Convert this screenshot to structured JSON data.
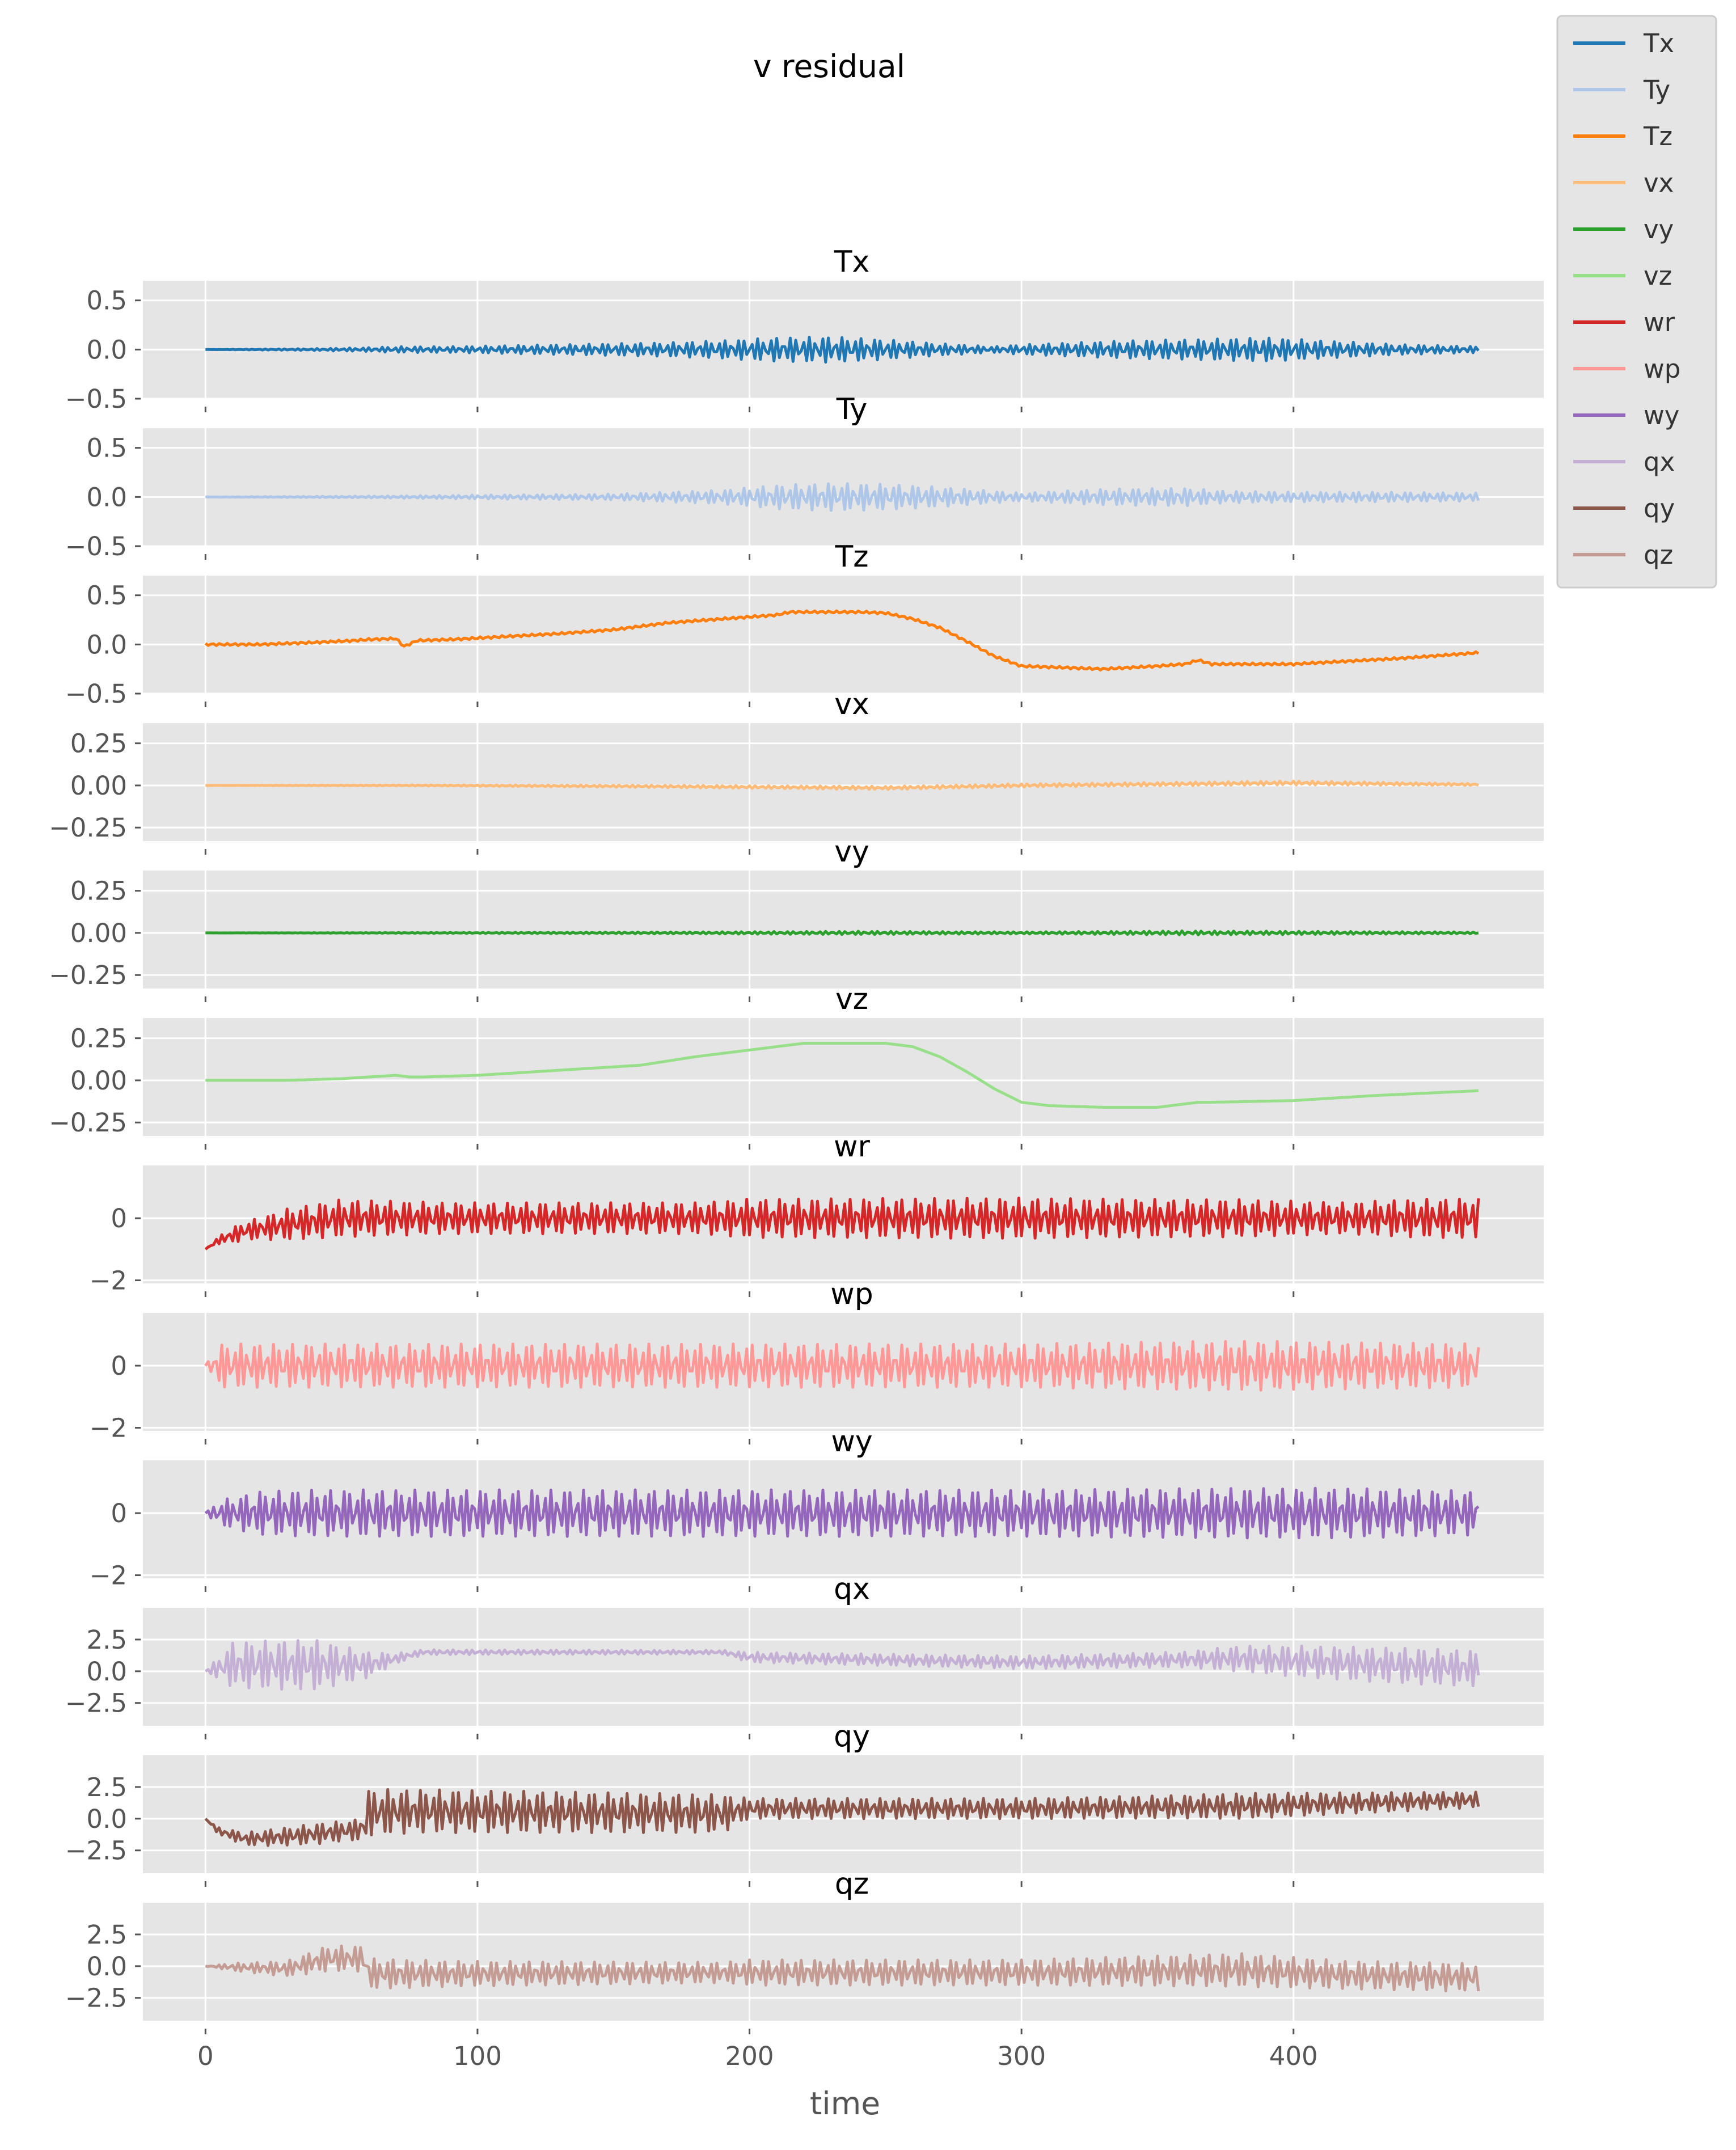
{
  "chart_data": {
    "type": "line",
    "title": "v residual",
    "xlabel": "time",
    "xlim": [
      -23,
      492
    ],
    "xticks": [
      0,
      100,
      200,
      300,
      400
    ],
    "xtick_labels": [
      "0",
      "100",
      "200",
      "300",
      "400"
    ],
    "grid": true,
    "legend_placement": "top-right (outside)",
    "legend": [
      "Tx",
      "Ty",
      "Tz",
      "vx",
      "vy",
      "vz",
      "wr",
      "wp",
      "wy",
      "qx",
      "qy",
      "qz"
    ],
    "colors": {
      "Tx": "#1f77b4",
      "Ty": "#aec7e8",
      "Tz": "#ff7f0e",
      "vx": "#ffbb78",
      "vy": "#2ca02c",
      "vz": "#98df8a",
      "wr": "#d62728",
      "wp": "#ff9896",
      "wy": "#9467bd",
      "qx": "#c5b0d5",
      "qy": "#8c564b",
      "qz": "#c49c94"
    },
    "panels": [
      {
        "title": "Tx",
        "ylim": [
          -0.5,
          0.7
        ],
        "yticks": [
          0.5,
          0.0,
          -0.5
        ],
        "ytick_labels": [
          "0.5",
          "0.0",
          "−0.5"
        ],
        "series": {
          "name": "Tx",
          "envelope_x": [
            0,
            40,
            60,
            70,
            90,
            130,
            170,
            190,
            210,
            230,
            250,
            270,
            290,
            300,
            320,
            340,
            360,
            375,
            390,
            410,
            440,
            470
          ],
          "envelope_amp": [
            0.0,
            0.01,
            0.02,
            0.03,
            0.03,
            0.05,
            0.07,
            0.09,
            0.12,
            0.13,
            0.1,
            0.06,
            0.03,
            0.05,
            0.07,
            0.09,
            0.1,
            0.11,
            0.12,
            0.09,
            0.05,
            0.03
          ],
          "trend_x": [
            0,
            470
          ],
          "trend_y": [
            0.0,
            0.0
          ],
          "freq": 0.42
        }
      },
      {
        "title": "Ty",
        "ylim": [
          -0.5,
          0.7
        ],
        "yticks": [
          0.5,
          0.0,
          -0.5
        ],
        "ytick_labels": [
          "0.5",
          "0.0",
          "−0.5"
        ],
        "series": {
          "name": "Ty",
          "envelope_x": [
            0,
            60,
            100,
            150,
            190,
            210,
            230,
            250,
            270,
            290,
            300,
            330,
            360,
            375,
            400,
            430,
            470
          ],
          "envelope_amp": [
            0.0,
            0.01,
            0.02,
            0.03,
            0.07,
            0.12,
            0.14,
            0.13,
            0.1,
            0.06,
            0.04,
            0.08,
            0.09,
            0.06,
            0.05,
            0.05,
            0.04
          ],
          "trend_x": [
            0,
            470
          ],
          "trend_y": [
            0.0,
            0.0
          ],
          "freq": 0.42
        }
      },
      {
        "title": "Tz",
        "ylim": [
          -0.5,
          0.7
        ],
        "yticks": [
          0.5,
          0.0,
          -0.5
        ],
        "ytick_labels": [
          "0.5",
          "0.0",
          "−0.5"
        ],
        "series": {
          "name": "Tz",
          "x": [
            0,
            20,
            40,
            55,
            60,
            70,
            73,
            78,
            90,
            110,
            130,
            150,
            170,
            190,
            200,
            210,
            215,
            220,
            230,
            240,
            250,
            260,
            270,
            280,
            290,
            300,
            310,
            330,
            350,
            360,
            365,
            370,
            380,
            400,
            420,
            440,
            470
          ],
          "y": [
            0.0,
            0.0,
            0.02,
            0.04,
            0.05,
            0.06,
            -0.02,
            0.04,
            0.05,
            0.08,
            0.11,
            0.15,
            0.22,
            0.26,
            0.28,
            0.3,
            0.33,
            0.33,
            0.33,
            0.33,
            0.32,
            0.26,
            0.17,
            0.03,
            -0.12,
            -0.22,
            -0.23,
            -0.25,
            -0.22,
            -0.2,
            -0.16,
            -0.2,
            -0.2,
            -0.2,
            -0.17,
            -0.14,
            -0.08
          ],
          "noise": 0.012
        }
      },
      {
        "title": "vx",
        "ylim": [
          -0.33,
          0.37
        ],
        "yticks": [
          0.25,
          0.0,
          -0.25
        ],
        "ytick_labels": [
          "0.25",
          "0.00",
          "−0.25"
        ],
        "series": {
          "name": "vx",
          "envelope_x": [
            0,
            100,
            180,
            230,
            300,
            400,
            470
          ],
          "envelope_amp": [
            0.0,
            0.004,
            0.008,
            0.01,
            0.01,
            0.012,
            0.006
          ],
          "trend_x": [
            0,
            80,
            160,
            250,
            300,
            400,
            470
          ],
          "trend_y": [
            0.0,
            0.0,
            -0.005,
            -0.015,
            0.0,
            0.015,
            0.005
          ],
          "freq": 0.42
        }
      },
      {
        "title": "vy",
        "ylim": [
          -0.33,
          0.37
        ],
        "yticks": [
          0.25,
          0.0,
          -0.25
        ],
        "ytick_labels": [
          "0.25",
          "0.00",
          "−0.25"
        ],
        "series": {
          "name": "vy",
          "envelope_x": [
            0,
            100,
            180,
            240,
            300,
            360,
            400,
            470
          ],
          "envelope_amp": [
            0.0,
            0.003,
            0.006,
            0.01,
            0.006,
            0.012,
            0.01,
            0.005
          ],
          "trend_x": [
            0,
            470
          ],
          "trend_y": [
            0.0,
            0.0
          ],
          "freq": 0.42
        }
      },
      {
        "title": "vz",
        "ylim": [
          -0.33,
          0.37
        ],
        "yticks": [
          0.25,
          0.0,
          -0.25
        ],
        "ytick_labels": [
          "0.25",
          "0.00",
          "−0.25"
        ],
        "series": {
          "name": "vz",
          "x": [
            0,
            30,
            50,
            60,
            70,
            75,
            80,
            100,
            120,
            140,
            160,
            180,
            200,
            210,
            220,
            230,
            240,
            250,
            260,
            270,
            280,
            290,
            300,
            310,
            330,
            340,
            350,
            360,
            365,
            370,
            400,
            430,
            470
          ],
          "y": [
            0.0,
            0.0,
            0.01,
            0.02,
            0.03,
            0.02,
            0.02,
            0.03,
            0.05,
            0.07,
            0.09,
            0.14,
            0.18,
            0.2,
            0.22,
            0.22,
            0.22,
            0.22,
            0.2,
            0.14,
            0.05,
            -0.05,
            -0.13,
            -0.15,
            -0.16,
            -0.16,
            -0.16,
            -0.14,
            -0.13,
            -0.13,
            -0.12,
            -0.09,
            -0.06
          ],
          "noise": 0.0
        }
      },
      {
        "title": "wr",
        "ylim": [
          -2.1,
          1.7
        ],
        "yticks": [
          0,
          -2
        ],
        "ytick_labels": [
          "0",
          "−2"
        ],
        "series": {
          "name": "wr",
          "envelope_x": [
            0,
            10,
            20,
            30,
            50,
            70,
            90,
            180,
            200,
            300,
            360,
            380,
            420,
            440,
            470
          ],
          "envelope_amp": [
            0.0,
            0.25,
            0.35,
            0.5,
            0.6,
            0.55,
            0.5,
            0.5,
            0.62,
            0.65,
            0.6,
            0.6,
            0.5,
            0.6,
            0.65
          ],
          "trend_x": [
            0,
            5,
            15,
            30,
            50,
            100,
            470
          ],
          "trend_y": [
            -1.0,
            -0.7,
            -0.4,
            -0.2,
            0.0,
            0.0,
            0.0
          ],
          "freq": 0.42
        }
      },
      {
        "title": "wp",
        "ylim": [
          -2.1,
          1.7
        ],
        "yticks": [
          0,
          -2
        ],
        "ytick_labels": [
          "0",
          "−2"
        ],
        "series": {
          "name": "wp",
          "envelope_x": [
            0,
            5,
            20,
            40,
            80,
            200,
            300,
            380,
            420,
            470
          ],
          "envelope_amp": [
            0.0,
            0.7,
            0.7,
            0.7,
            0.7,
            0.7,
            0.7,
            0.8,
            0.75,
            0.7
          ],
          "trend_x": [
            0,
            470
          ],
          "trend_y": [
            0.0,
            0.0
          ],
          "freq": 0.42
        }
      },
      {
        "title": "wy",
        "ylim": [
          -2.1,
          1.7
        ],
        "yticks": [
          0,
          -2
        ],
        "ytick_labels": [
          "0",
          "−2"
        ],
        "series": {
          "name": "wy",
          "envelope_x": [
            0,
            5,
            20,
            40,
            80,
            200,
            300,
            380,
            420,
            470
          ],
          "envelope_amp": [
            0.0,
            0.4,
            0.7,
            0.75,
            0.75,
            0.75,
            0.75,
            0.8,
            0.8,
            0.7
          ],
          "trend_x": [
            0,
            470
          ],
          "trend_y": [
            0.0,
            0.0
          ],
          "freq": 0.42
        }
      },
      {
        "title": "qx",
        "ylim": [
          -4.3,
          5.0
        ],
        "yticks": [
          2.5,
          0.0,
          -2.5
        ],
        "ytick_labels": [
          "2.5",
          "0.0",
          "−2.5"
        ],
        "series": {
          "name": "qx",
          "envelope_x": [
            0,
            10,
            40,
            60,
            70,
            80,
            190,
            200,
            300,
            360,
            380,
            400,
            420,
            440,
            470
          ],
          "envelope_amp": [
            0.0,
            1.8,
            2.0,
            1.0,
            0.4,
            0.2,
            0.15,
            0.4,
            0.5,
            0.6,
            1.0,
            1.2,
            1.3,
            1.4,
            1.4
          ],
          "trend_x": [
            0,
            10,
            40,
            60,
            80,
            190,
            200,
            300,
            380,
            420,
            470
          ],
          "trend_y": [
            0.0,
            0.5,
            0.5,
            0.5,
            1.5,
            1.5,
            1.1,
            0.7,
            1.0,
            0.6,
            0.2
          ],
          "freq": 0.42
        }
      },
      {
        "title": "qy",
        "ylim": [
          -4.3,
          5.0
        ],
        "yticks": [
          2.5,
          0.0,
          -2.5
        ],
        "ytick_labels": [
          "2.5",
          "0.0",
          "−2.5"
        ],
        "series": {
          "name": "qy",
          "envelope_x": [
            0,
            5,
            20,
            40,
            55,
            60,
            80,
            190,
            200,
            300,
            360,
            380,
            470
          ],
          "envelope_amp": [
            0.0,
            0.3,
            0.6,
            0.8,
            0.8,
            1.8,
            1.7,
            1.5,
            0.8,
            0.8,
            0.9,
            1.0,
            0.6
          ],
          "trend_x": [
            0,
            5,
            15,
            30,
            50,
            58,
            60,
            80,
            190,
            200,
            300,
            380,
            470
          ],
          "trend_y": [
            0.0,
            -1.0,
            -1.6,
            -1.4,
            -1.0,
            -0.8,
            0.5,
            0.6,
            0.4,
            0.8,
            0.8,
            1.0,
            1.5
          ],
          "freq": 0.42
        }
      },
      {
        "title": "qz",
        "ylim": [
          -4.3,
          5.0
        ],
        "yticks": [
          2.5,
          0.0,
          -2.5
        ],
        "ytick_labels": [
          "2.5",
          "0.0",
          "−2.5"
        ],
        "series": {
          "name": "qz",
          "envelope_x": [
            0,
            10,
            30,
            45,
            58,
            60,
            90,
            190,
            200,
            300,
            380,
            420,
            470
          ],
          "envelope_amp": [
            0.0,
            0.3,
            0.6,
            1.0,
            1.0,
            1.2,
            1.0,
            0.8,
            1.0,
            1.0,
            1.3,
            1.1,
            1.1
          ],
          "trend_x": [
            0,
            30,
            45,
            58,
            60,
            90,
            190,
            300,
            380,
            420,
            470
          ],
          "trend_y": [
            0.0,
            -0.2,
            0.6,
            0.6,
            -0.6,
            -0.6,
            -0.5,
            -0.5,
            -0.3,
            -0.7,
            -0.9
          ],
          "freq": 0.42
        }
      }
    ]
  }
}
